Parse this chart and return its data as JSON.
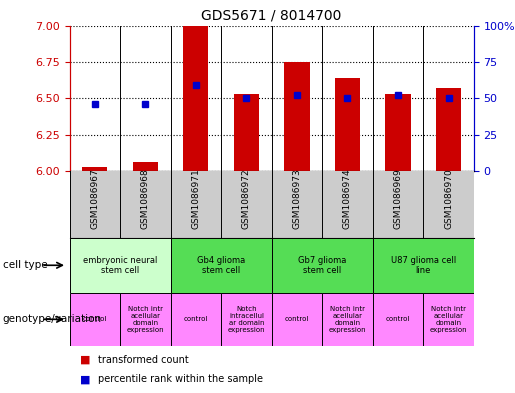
{
  "title": "GDS5671 / 8014700",
  "samples": [
    "GSM1086967",
    "GSM1086968",
    "GSM1086971",
    "GSM1086972",
    "GSM1086973",
    "GSM1086974",
    "GSM1086969",
    "GSM1086970"
  ],
  "red_values": [
    6.03,
    6.06,
    7.0,
    6.53,
    6.75,
    6.64,
    6.53,
    6.57
  ],
  "blue_values": [
    46,
    46,
    59,
    50,
    52,
    50,
    52,
    50
  ],
  "ylim_left": [
    6.0,
    7.0
  ],
  "ylim_right": [
    0,
    100
  ],
  "yticks_left": [
    6.0,
    6.25,
    6.5,
    6.75,
    7.0
  ],
  "yticks_right": [
    0,
    25,
    50,
    75,
    100
  ],
  "cell_type_groups": [
    {
      "label": "embryonic neural\nstem cell",
      "start": 0,
      "end": 2,
      "color": "#ccffcc"
    },
    {
      "label": "Gb4 glioma\nstem cell",
      "start": 2,
      "end": 4,
      "color": "#55dd55"
    },
    {
      "label": "Gb7 glioma\nstem cell",
      "start": 4,
      "end": 6,
      "color": "#55dd55"
    },
    {
      "label": "U87 glioma cell\nline",
      "start": 6,
      "end": 8,
      "color": "#55dd55"
    }
  ],
  "genotype_groups": [
    {
      "label": "control",
      "start": 0,
      "end": 1,
      "color": "#ff88ff"
    },
    {
      "label": "Notch intr\nacellular\ndomain\nexpression",
      "start": 1,
      "end": 2,
      "color": "#ff88ff"
    },
    {
      "label": "control",
      "start": 2,
      "end": 3,
      "color": "#ff88ff"
    },
    {
      "label": "Notch\nintracellul\nar domain\nexpression",
      "start": 3,
      "end": 4,
      "color": "#ff88ff"
    },
    {
      "label": "control",
      "start": 4,
      "end": 5,
      "color": "#ff88ff"
    },
    {
      "label": "Notch intr\nacellular\ndomain\nexpression",
      "start": 5,
      "end": 6,
      "color": "#ff88ff"
    },
    {
      "label": "control",
      "start": 6,
      "end": 7,
      "color": "#ff88ff"
    },
    {
      "label": "Notch intr\nacellular\ndomain\nexpression",
      "start": 7,
      "end": 8,
      "color": "#ff88ff"
    }
  ],
  "bar_color": "#cc0000",
  "dot_color": "#0000cc",
  "bg_color": "#ffffff",
  "left_axis_color": "#cc0000",
  "right_axis_color": "#0000cc",
  "bar_width": 0.5,
  "base_value": 6.0,
  "sample_bg_color": "#cccccc",
  "legend_square_red": "#cc0000",
  "legend_square_blue": "#0000cc"
}
